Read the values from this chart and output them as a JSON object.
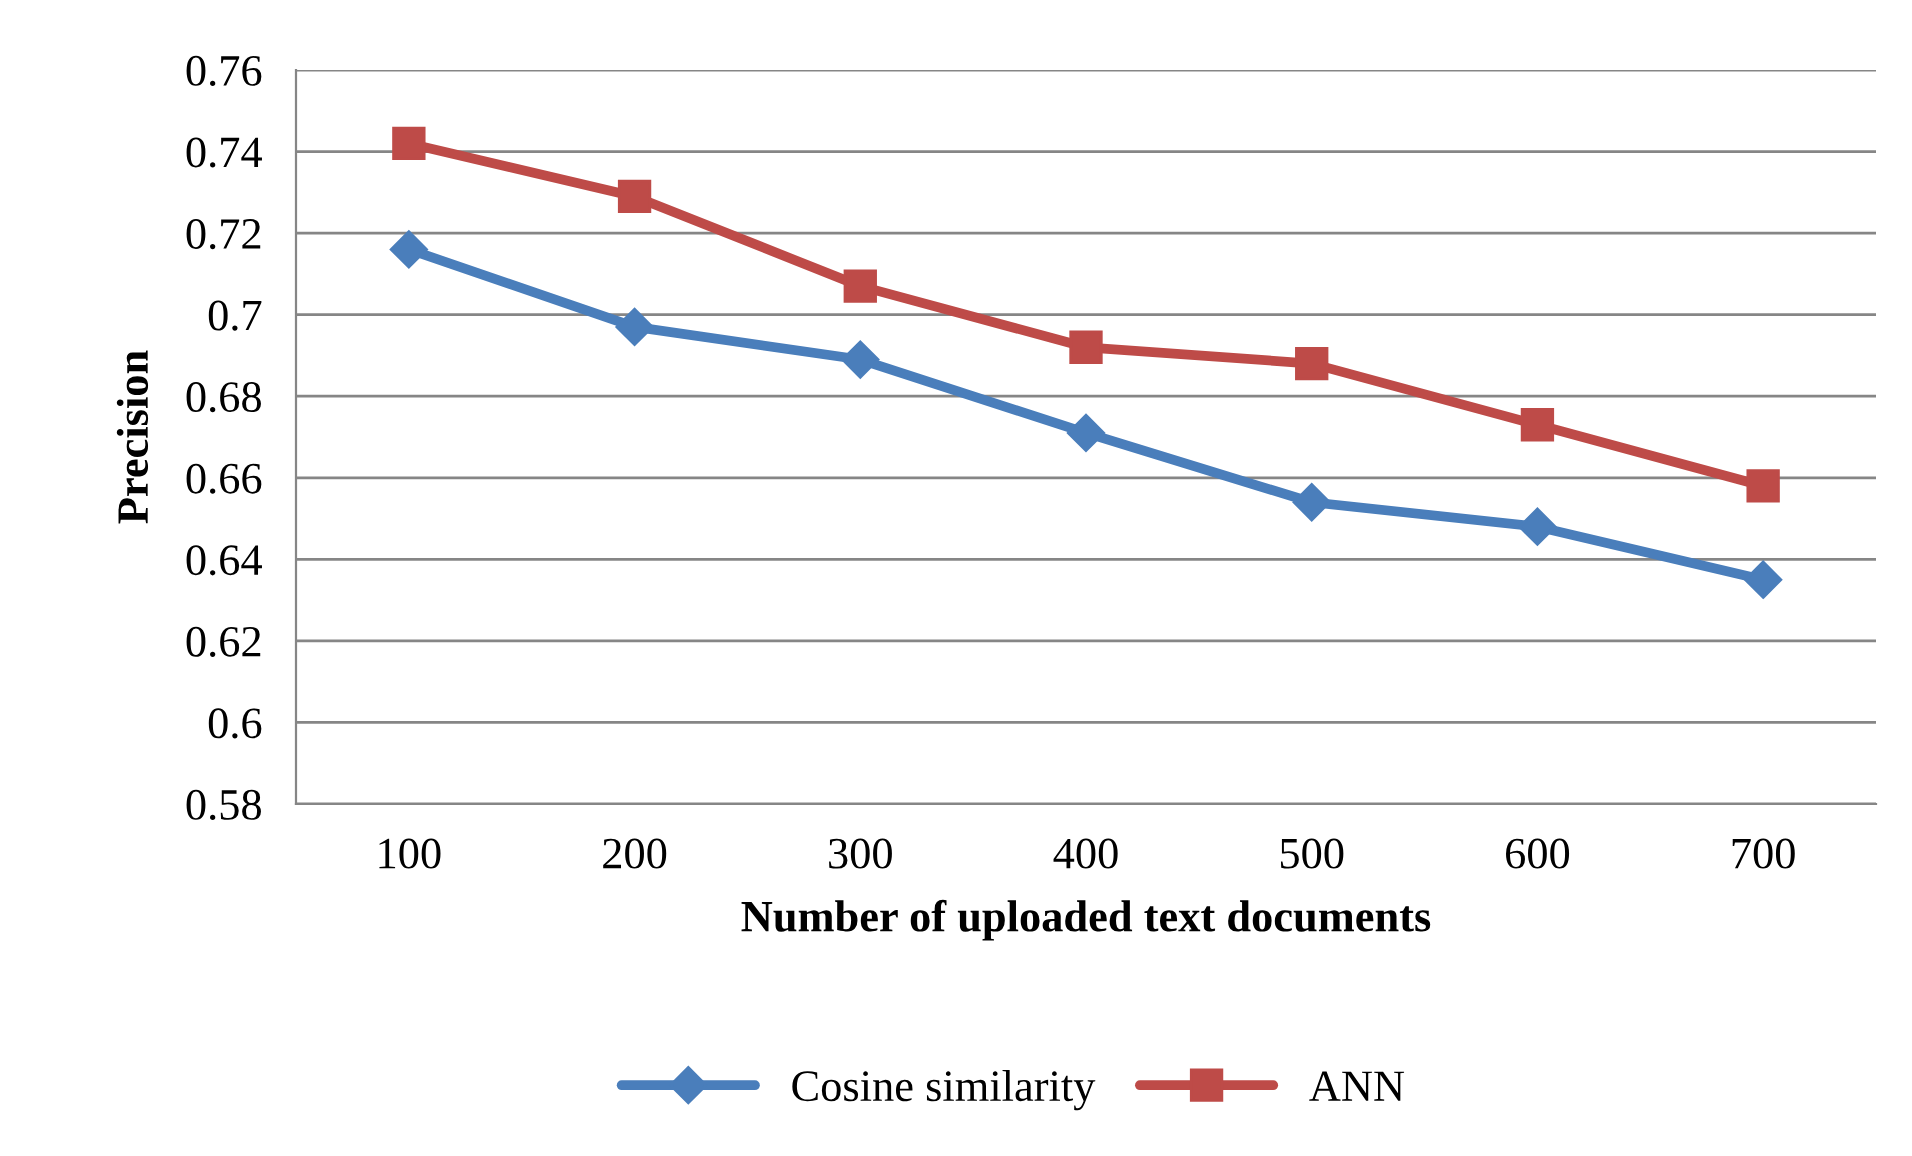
{
  "chart_data": {
    "type": "line",
    "xlabel": "Number of uploaded text documents",
    "ylabel": "Precision",
    "categories": [
      "100",
      "200",
      "300",
      "400",
      "500",
      "600",
      "700"
    ],
    "series": [
      {
        "name": "Cosine similarity",
        "color": "#4a7ebb",
        "marker": "diamond",
        "values": [
          0.716,
          0.697,
          0.689,
          0.671,
          0.654,
          0.648,
          0.635
        ]
      },
      {
        "name": "ANN",
        "color": "#be4b48",
        "marker": "square",
        "values": [
          0.742,
          0.729,
          0.707,
          0.692,
          0.688,
          0.673,
          0.658
        ]
      }
    ],
    "ylim": [
      0.58,
      0.76
    ],
    "yticks": [
      0.58,
      0.6,
      0.62,
      0.64,
      0.66,
      0.68,
      0.7,
      0.72,
      0.74,
      0.76
    ],
    "grid": "y",
    "legend": "bottom",
    "line_style": "solid"
  }
}
